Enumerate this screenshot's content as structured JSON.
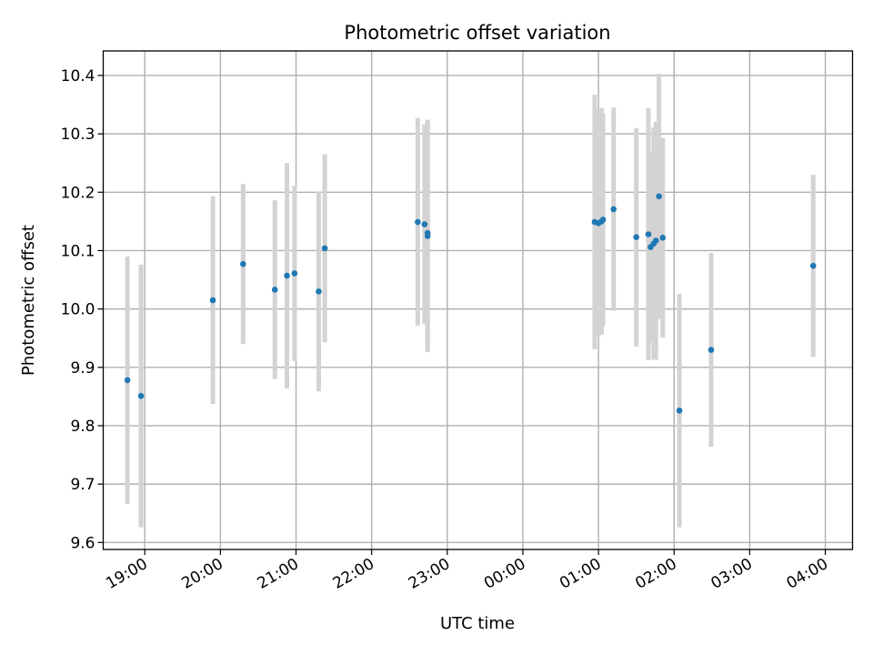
{
  "chart_data": {
    "type": "scatter",
    "title": "Photometric offset variation",
    "xlabel": "UTC time",
    "ylabel": "Photometric offset",
    "x_unit": "hours",
    "x_ticks": [
      {
        "value": 19,
        "label": "19:00"
      },
      {
        "value": 20,
        "label": "20:00"
      },
      {
        "value": 21,
        "label": "21:00"
      },
      {
        "value": 22,
        "label": "22:00"
      },
      {
        "value": 23,
        "label": "23:00"
      },
      {
        "value": 24,
        "label": "00:00"
      },
      {
        "value": 25,
        "label": "01:00"
      },
      {
        "value": 26,
        "label": "02:00"
      },
      {
        "value": 27,
        "label": "03:00"
      },
      {
        "value": 28,
        "label": "04:00"
      }
    ],
    "y_ticks": [
      {
        "value": 9.6,
        "label": "9.6"
      },
      {
        "value": 9.7,
        "label": "9.7"
      },
      {
        "value": 9.8,
        "label": "9.8"
      },
      {
        "value": 9.9,
        "label": "9.9"
      },
      {
        "value": 10.0,
        "label": "10.0"
      },
      {
        "value": 10.1,
        "label": "10.1"
      },
      {
        "value": 10.2,
        "label": "10.2"
      },
      {
        "value": 10.3,
        "label": "10.3"
      },
      {
        "value": 10.4,
        "label": "10.4"
      }
    ],
    "xlim": [
      18.45,
      28.36
    ],
    "ylim": [
      9.588,
      10.442
    ],
    "grid": true,
    "marker_color": "#1f77b4",
    "errorbar_color": "#d3d3d3",
    "points": [
      {
        "x": 18.77,
        "y": 9.878,
        "err_low": 0.212,
        "err_high": 0.212
      },
      {
        "x": 18.95,
        "y": 9.851,
        "err_low": 0.225,
        "err_high": 0.225
      },
      {
        "x": 19.9,
        "y": 10.015,
        "err_low": 0.178,
        "err_high": 0.178
      },
      {
        "x": 20.3,
        "y": 10.077,
        "err_low": 0.137,
        "err_high": 0.137
      },
      {
        "x": 20.72,
        "y": 10.033,
        "err_low": 0.153,
        "err_high": 0.153
      },
      {
        "x": 20.88,
        "y": 10.057,
        "err_low": 0.193,
        "err_high": 0.193
      },
      {
        "x": 20.98,
        "y": 10.061,
        "err_low": 0.15,
        "err_high": 0.15
      },
      {
        "x": 21.3,
        "y": 10.03,
        "err_low": 0.171,
        "err_high": 0.171
      },
      {
        "x": 21.38,
        "y": 10.104,
        "err_low": 0.161,
        "err_high": 0.161
      },
      {
        "x": 22.61,
        "y": 10.149,
        "err_low": 0.178,
        "err_high": 0.178
      },
      {
        "x": 22.7,
        "y": 10.145,
        "err_low": 0.171,
        "err_high": 0.171
      },
      {
        "x": 22.74,
        "y": 10.125,
        "err_low": 0.199,
        "err_high": 0.199
      },
      {
        "x": 22.74,
        "y": 10.13,
        "err_low": 0.194,
        "err_high": 0.194
      },
      {
        "x": 24.95,
        "y": 10.149,
        "err_low": 0.218,
        "err_high": 0.218
      },
      {
        "x": 25.0,
        "y": 10.147,
        "err_low": 0.194,
        "err_high": 0.194
      },
      {
        "x": 25.04,
        "y": 10.15,
        "err_low": 0.194,
        "err_high": 0.194
      },
      {
        "x": 25.06,
        "y": 10.153,
        "err_low": 0.182,
        "err_high": 0.182
      },
      {
        "x": 25.2,
        "y": 10.171,
        "err_low": 0.174,
        "err_high": 0.174
      },
      {
        "x": 25.5,
        "y": 10.123,
        "err_low": 0.187,
        "err_high": 0.187
      },
      {
        "x": 25.66,
        "y": 10.128,
        "err_low": 0.216,
        "err_high": 0.216
      },
      {
        "x": 25.69,
        "y": 10.106,
        "err_low": 0.163,
        "err_high": 0.163
      },
      {
        "x": 25.73,
        "y": 10.112,
        "err_low": 0.199,
        "err_high": 0.199
      },
      {
        "x": 25.76,
        "y": 10.117,
        "err_low": 0.204,
        "err_high": 0.204
      },
      {
        "x": 25.8,
        "y": 10.193,
        "err_low": 0.21,
        "err_high": 0.21
      },
      {
        "x": 25.85,
        "y": 10.122,
        "err_low": 0.171,
        "err_high": 0.171
      },
      {
        "x": 26.07,
        "y": 9.826,
        "err_low": 0.2,
        "err_high": 0.2
      },
      {
        "x": 26.49,
        "y": 9.93,
        "err_low": 0.166,
        "err_high": 0.166
      },
      {
        "x": 27.84,
        "y": 10.074,
        "err_low": 0.156,
        "err_high": 0.156
      }
    ]
  }
}
